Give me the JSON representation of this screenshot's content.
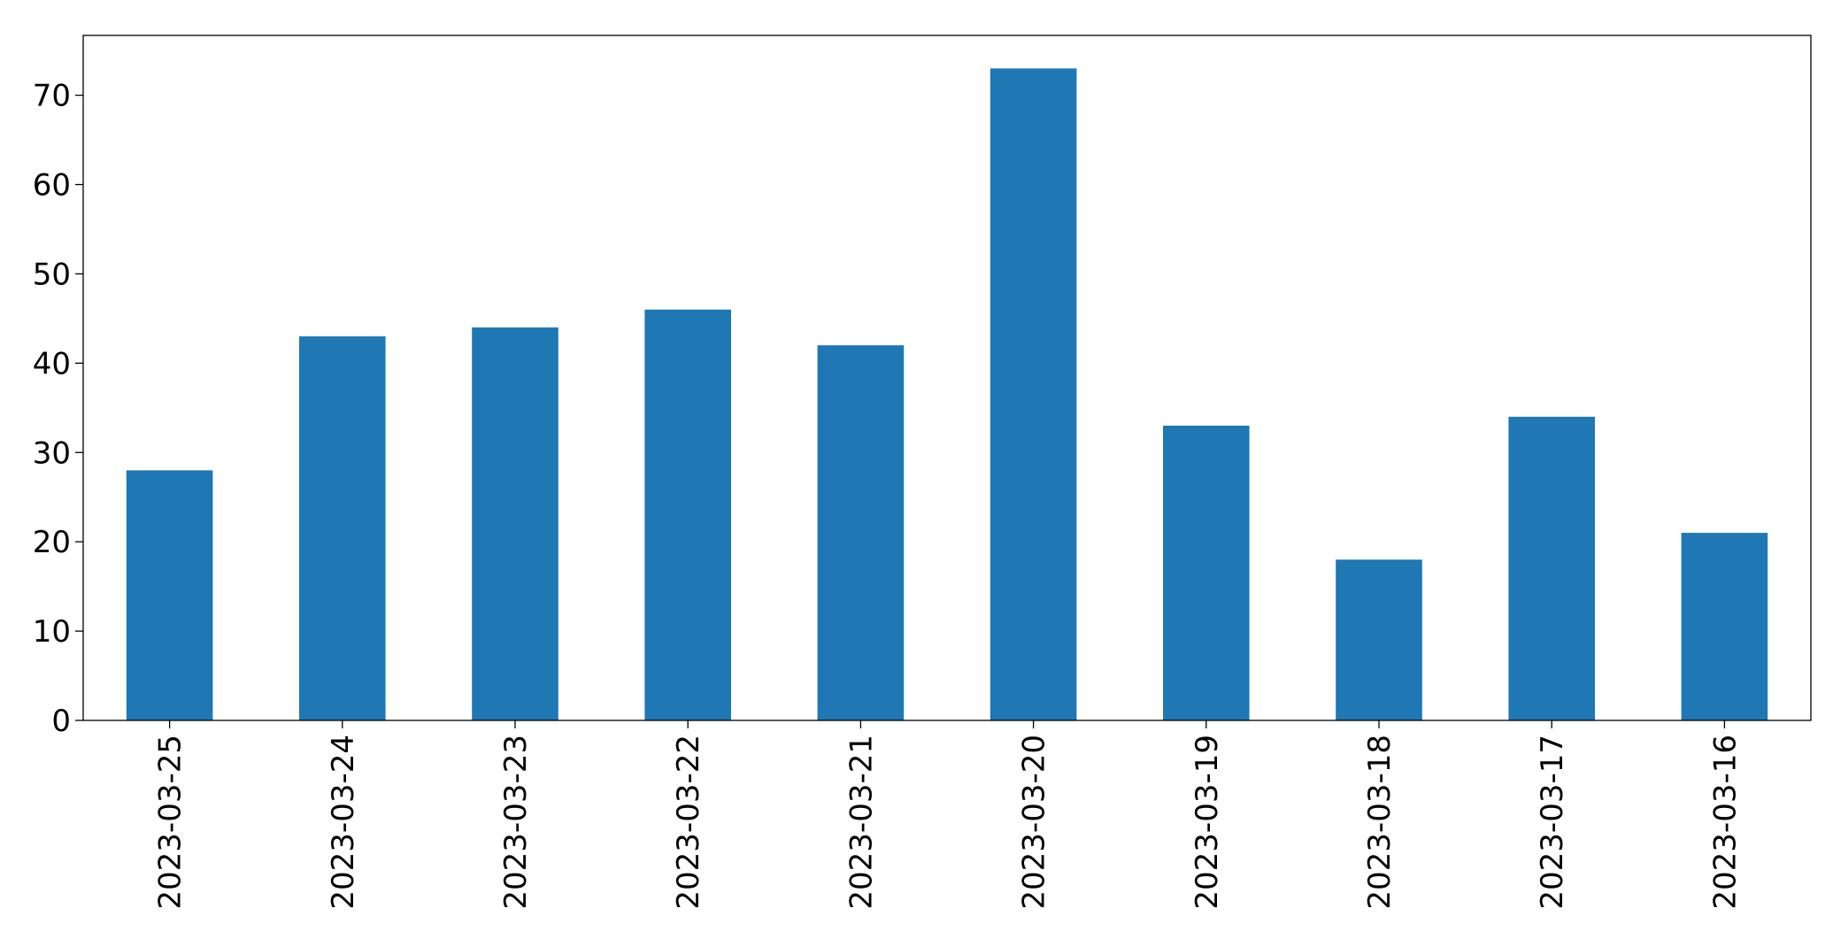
{
  "chart_data": {
    "type": "bar",
    "categories": [
      "2023-03-25",
      "2023-03-24",
      "2023-03-23",
      "2023-03-22",
      "2023-03-21",
      "2023-03-20",
      "2023-03-19",
      "2023-03-18",
      "2023-03-17",
      "2023-03-16"
    ],
    "values": [
      28,
      43,
      44,
      46,
      42,
      73,
      33,
      18,
      34,
      21
    ],
    "color": "#1f77b4",
    "ylim": [
      0,
      76.7
    ],
    "yticks": [
      0,
      10,
      20,
      30,
      40,
      50,
      60,
      70
    ],
    "grid": false
  }
}
